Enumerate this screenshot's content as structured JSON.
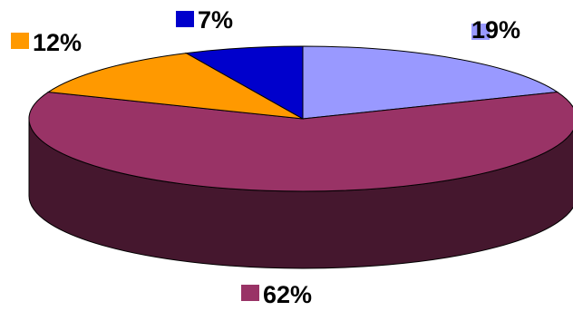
{
  "chart_data": {
    "type": "pie",
    "style": "3d",
    "title": "",
    "slices": [
      {
        "label": "19%",
        "value": 19,
        "color": "#9999ff"
      },
      {
        "label": "62%",
        "value": 62,
        "color": "#993366"
      },
      {
        "label": "12%",
        "value": 12,
        "color": "#ff9900"
      },
      {
        "label": "7%",
        "value": 7,
        "color": "#0000cc"
      }
    ],
    "legend": "none"
  }
}
